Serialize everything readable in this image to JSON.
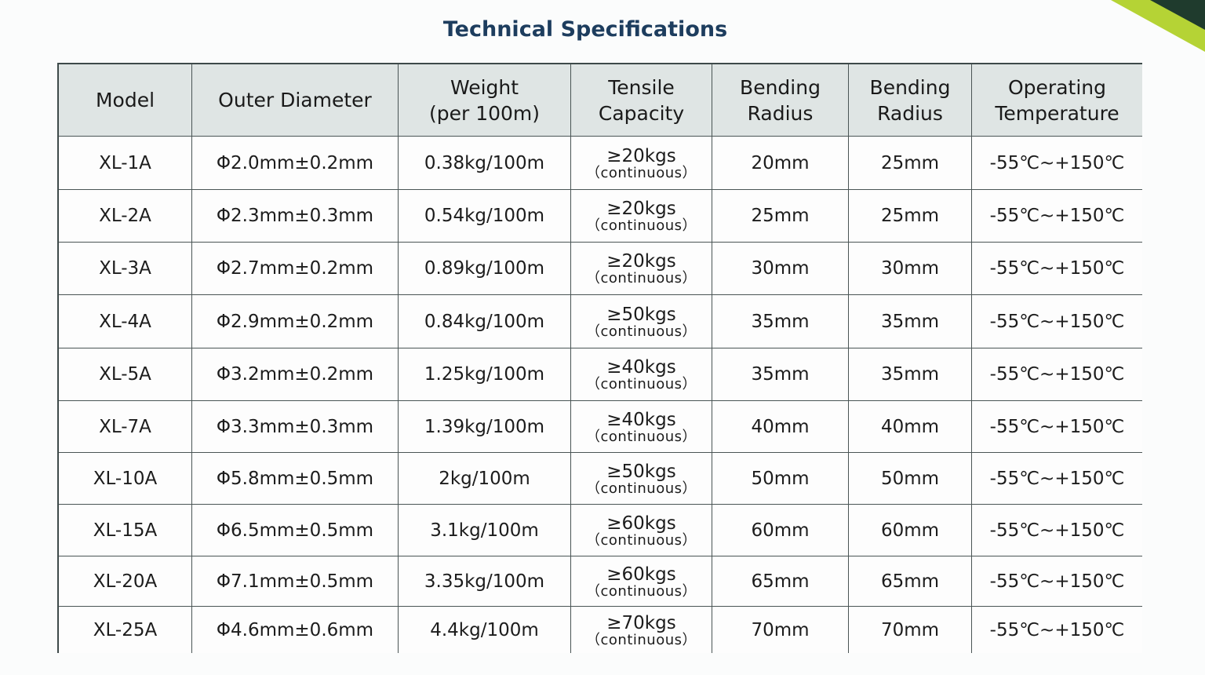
{
  "title": "Technical Specifications",
  "table": {
    "headers": [
      [
        "Model"
      ],
      [
        "Outer Diameter"
      ],
      [
        "Weight",
        "(per 100m)"
      ],
      [
        "Tensile",
        "Capacity"
      ],
      [
        "Bending",
        "Radius"
      ],
      [
        "Bending",
        "Radius"
      ],
      [
        "Operating",
        "Temperature"
      ]
    ],
    "rows": [
      [
        "XL-1A",
        "Φ2.0mm±0.2mm",
        "0.38kg/100m",
        [
          "≥20kgs",
          "（continuous）"
        ],
        "20mm",
        "25mm",
        "-55℃~+150℃"
      ],
      [
        "XL-2A",
        "Φ2.3mm±0.3mm",
        "0.54kg/100m",
        [
          "≥20kgs",
          "（continuous）"
        ],
        "25mm",
        "25mm",
        "-55℃~+150℃"
      ],
      [
        "XL-3A",
        "Φ2.7mm±0.2mm",
        "0.89kg/100m",
        [
          "≥20kgs",
          "（continuous）"
        ],
        "30mm",
        "30mm",
        "-55℃~+150℃"
      ],
      [
        "XL-4A",
        "Φ2.9mm±0.2mm",
        "0.84kg/100m",
        [
          "≥50kgs",
          "（continuous）"
        ],
        "35mm",
        "35mm",
        "-55℃~+150℃"
      ],
      [
        "XL-5A",
        "Φ3.2mm±0.2mm",
        "1.25kg/100m",
        [
          "≥40kgs",
          "（continuous）"
        ],
        "35mm",
        "35mm",
        "-55℃~+150℃"
      ],
      [
        "XL-7A",
        "Φ3.3mm±0.3mm",
        "1.39kg/100m",
        [
          "≥40kgs",
          "（continuous）"
        ],
        "40mm",
        "40mm",
        "-55℃~+150℃"
      ],
      [
        "XL-10A",
        "Φ5.8mm±0.5mm",
        "2kg/100m",
        [
          "≥50kgs",
          "（continuous）"
        ],
        "50mm",
        "50mm",
        "-55℃~+150℃"
      ],
      [
        "XL-15A",
        "Φ6.5mm±0.5mm",
        "3.1kg/100m",
        [
          "≥60kgs",
          "（continuous）"
        ],
        "60mm",
        "60mm",
        "-55℃~+150℃"
      ],
      [
        "XL-20A",
        "Φ7.1mm±0.5mm",
        "3.35kg/100m",
        [
          "≥60kgs",
          "（continuous）"
        ],
        "65mm",
        "65mm",
        "-55℃~+150℃"
      ],
      [
        "XL-25A",
        "Φ4.6mm±0.6mm",
        "4.4kg/100m",
        [
          "≥70kgs",
          "（continuous）"
        ],
        "70mm",
        "70mm",
        "-55℃~+150℃"
      ]
    ]
  }
}
